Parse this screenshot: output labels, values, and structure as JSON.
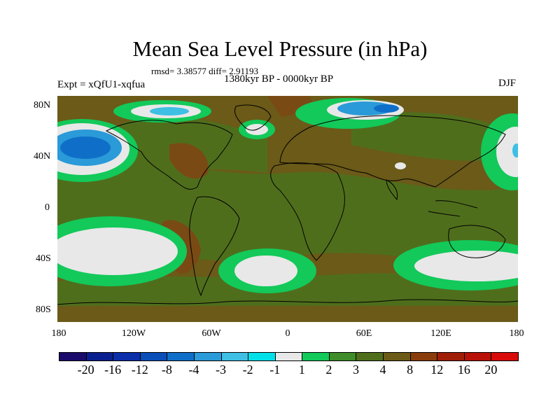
{
  "title": "Mean Sea Level Pressure (in hPa)",
  "stats": "rmsd= 3.38577  diff= 2.91193",
  "period": "1380kyr BP - 0000kyr BP",
  "experiment": "Expt = xQfU1-xqfua",
  "season": "DJF",
  "lat_labels": [
    "80N",
    "40N",
    "0",
    "40S",
    "80S"
  ],
  "lon_labels": [
    "180",
    "120W",
    "60W",
    "0",
    "60E",
    "120E",
    "180"
  ],
  "colorbar": {
    "labels": [
      "-20",
      "-16",
      "-12",
      "-8",
      "-4",
      "-3",
      "-2",
      "-1",
      "1",
      "2",
      "3",
      "4",
      "8",
      "12",
      "16",
      "20"
    ],
    "colors": [
      "#1a0a6b",
      "#0a1f8f",
      "#0a2fa8",
      "#0a4fb8",
      "#0f6fc8",
      "#2a9ad8",
      "#3fbfe3",
      "#00e0e8",
      "#e8e8e8",
      "#12c95a",
      "#3f8c2a",
      "#4f6e1c",
      "#6b5a18",
      "#8a3c0c",
      "#a01e08",
      "#b81208",
      "#d80a0a"
    ]
  },
  "legend_colors": {
    "background": "#6b5a18",
    "olive": "#4f6e1c",
    "green": "#3f8c2a",
    "bright_green": "#12c95a",
    "white": "#e8e8e8",
    "blue": "#2a9ad8",
    "dark_blue": "#0f6fc8",
    "brown": "#8a3c0c",
    "coast": "#000000"
  }
}
